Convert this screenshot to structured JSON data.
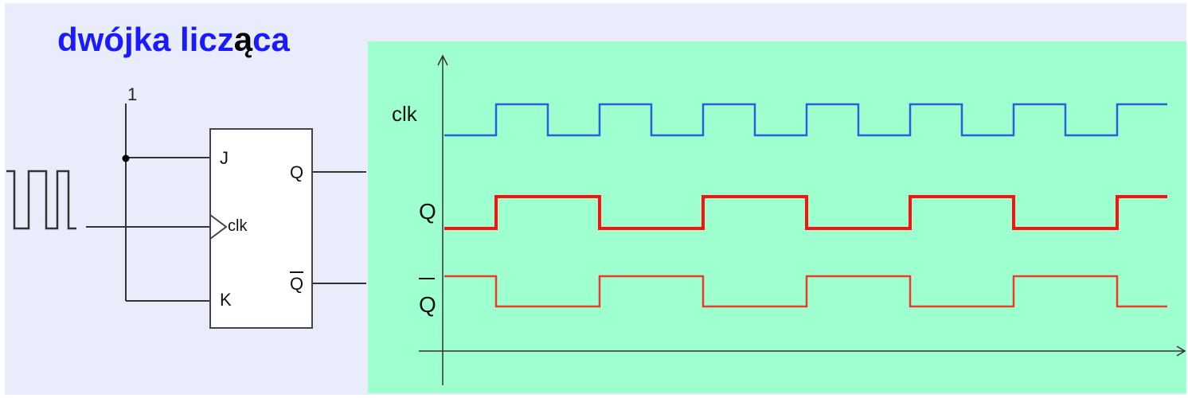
{
  "diagram": {
    "title": "dwójka licz",
    "title_special_char": "ą",
    "title_tail": "ca",
    "supply_label": "1",
    "flipflop": {
      "pin_j": "J",
      "pin_clk": "clk",
      "pin_k": "K",
      "out_q": "Q",
      "out_qbar": "Q"
    },
    "timing": {
      "signals": [
        {
          "name": "clk",
          "color": "#2a5fe0",
          "initial": 0,
          "transitions": [
            1,
            2,
            3,
            4,
            5,
            6,
            7,
            8,
            9,
            10,
            11,
            12,
            13
          ]
        },
        {
          "name": "Q",
          "color": "#ff1010",
          "initial": 0,
          "transitions": [
            1,
            3,
            5,
            7,
            9,
            11,
            13
          ]
        },
        {
          "name": "Q",
          "color": "#ee3a2a",
          "overline": true,
          "initial": 1,
          "transitions": [
            1,
            3,
            5,
            7,
            9,
            11,
            13
          ]
        }
      ]
    },
    "colors": {
      "page_bg": "#ffffff",
      "panel_left_bg": "#e8ecfb",
      "panel_right_bg": "#9effcf",
      "title": "#1a1aff",
      "ink": "#333333"
    }
  }
}
